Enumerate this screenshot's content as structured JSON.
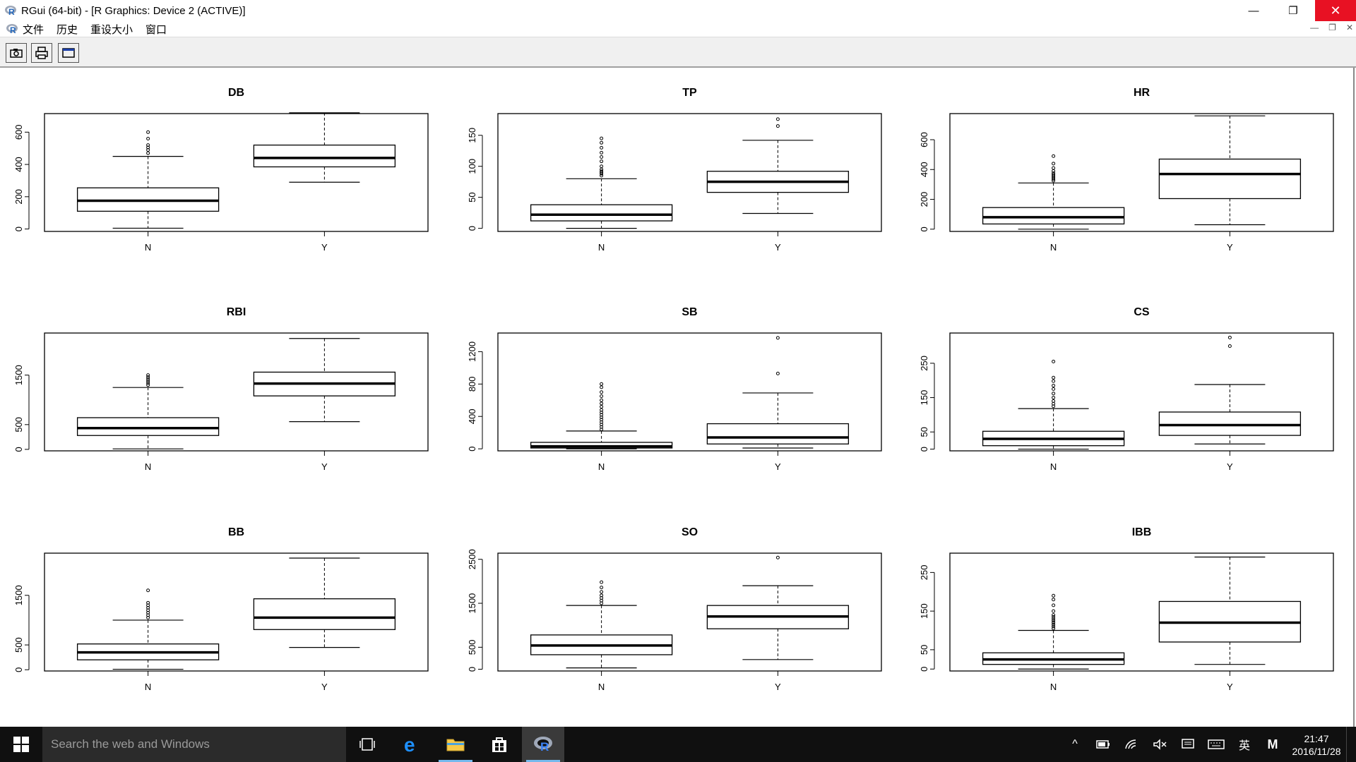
{
  "window": {
    "title": "RGui (64-bit) - [R Graphics: Device 2 (ACTIVE)]",
    "minimize_glyph": "—",
    "maximize_glyph": "❐",
    "close_glyph": "✕",
    "close_color": "#e81123"
  },
  "menubar": {
    "items": [
      "文件",
      "历史",
      "重设大小",
      "窗口"
    ],
    "mdi_close_label": "Close"
  },
  "toolbar": {
    "buttons": [
      "copy-icon",
      "print-icon",
      "window-icon"
    ]
  },
  "chart_data": [
    {
      "type": "boxplot",
      "title": "DB",
      "categories": [
        "N",
        "Y"
      ],
      "yticks": [
        0,
        200,
        400,
        600
      ],
      "ylim": [
        -15,
        715
      ],
      "boxes": [
        {
          "whisker_low": 5,
          "q1": 110,
          "median": 175,
          "q3": 255,
          "whisker_high": 450,
          "outliers": [
            470,
            490,
            505,
            520,
            560,
            600
          ]
        },
        {
          "whisker_low": 290,
          "q1": 385,
          "median": 440,
          "q3": 520,
          "whisker_high": 720,
          "outliers": []
        }
      ]
    },
    {
      "type": "boxplot",
      "title": "TP",
      "categories": [
        "N",
        "Y"
      ],
      "yticks": [
        0,
        50,
        100,
        150
      ],
      "ylim": [
        -5,
        185
      ],
      "boxes": [
        {
          "whisker_low": 0,
          "q1": 12,
          "median": 22,
          "q3": 38,
          "whisker_high": 80,
          "outliers": [
            85,
            88,
            90,
            92,
            95,
            100,
            108,
            115,
            122,
            130,
            138,
            145
          ]
        },
        {
          "whisker_low": 24,
          "q1": 58,
          "median": 75,
          "q3": 92,
          "whisker_high": 142,
          "outliers": [
            165,
            176
          ]
        }
      ]
    },
    {
      "type": "boxplot",
      "title": "HR",
      "categories": [
        "N",
        "Y"
      ],
      "yticks": [
        0,
        200,
        400,
        600
      ],
      "ylim": [
        -15,
        775
      ],
      "boxes": [
        {
          "whisker_low": 0,
          "q1": 35,
          "median": 80,
          "q3": 145,
          "whisker_high": 310,
          "outliers": [
            325,
            335,
            345,
            355,
            365,
            375,
            390,
            410,
            440,
            490
          ]
        },
        {
          "whisker_low": 30,
          "q1": 205,
          "median": 370,
          "q3": 470,
          "whisker_high": 760,
          "outliers": []
        }
      ]
    },
    {
      "type": "boxplot",
      "title": "RBI",
      "categories": [
        "N",
        "Y"
      ],
      "yticks": [
        0,
        500,
        1500
      ],
      "ylim": [
        -30,
        2350
      ],
      "boxes": [
        {
          "whisker_low": 10,
          "q1": 280,
          "median": 430,
          "q3": 640,
          "whisker_high": 1250,
          "outliers": [
            1300,
            1340,
            1380,
            1420,
            1460,
            1500
          ]
        },
        {
          "whisker_low": 560,
          "q1": 1080,
          "median": 1330,
          "q3": 1560,
          "whisker_high": 2240,
          "outliers": []
        }
      ]
    },
    {
      "type": "boxplot",
      "title": "SB",
      "categories": [
        "N",
        "Y"
      ],
      "yticks": [
        0,
        400,
        800,
        1200
      ],
      "ylim": [
        -25,
        1430
      ],
      "boxes": [
        {
          "whisker_low": 0,
          "q1": 10,
          "median": 30,
          "q3": 80,
          "whisker_high": 220,
          "outliers": [
            240,
            270,
            300,
            330,
            360,
            390,
            420,
            450,
            480,
            520,
            560,
            600,
            650,
            700,
            760,
            800
          ]
        },
        {
          "whisker_low": 10,
          "q1": 60,
          "median": 140,
          "q3": 310,
          "whisker_high": 690,
          "outliers": [
            930,
            1370
          ]
        }
      ]
    },
    {
      "type": "boxplot",
      "title": "CS",
      "categories": [
        "N",
        "Y"
      ],
      "yticks": [
        0,
        50,
        150,
        250
      ],
      "ylim": [
        -5,
        338
      ],
      "boxes": [
        {
          "whisker_low": 0,
          "q1": 10,
          "median": 30,
          "q3": 52,
          "whisker_high": 118,
          "outliers": [
            125,
            132,
            140,
            150,
            162,
            175,
            185,
            198,
            208,
            255
          ]
        },
        {
          "whisker_low": 15,
          "q1": 40,
          "median": 70,
          "q3": 108,
          "whisker_high": 188,
          "outliers": [
            300,
            325
          ]
        }
      ]
    },
    {
      "type": "boxplot",
      "title": "BB",
      "categories": [
        "N",
        "Y"
      ],
      "yticks": [
        0,
        500,
        1500
      ],
      "ylim": [
        -25,
        2350
      ],
      "boxes": [
        {
          "whisker_low": 10,
          "q1": 200,
          "median": 350,
          "q3": 520,
          "whisker_high": 1000,
          "outliers": [
            1050,
            1100,
            1150,
            1200,
            1250,
            1300,
            1350,
            1600
          ]
        },
        {
          "whisker_low": 450,
          "q1": 810,
          "median": 1050,
          "q3": 1430,
          "whisker_high": 2250,
          "outliers": []
        }
      ]
    },
    {
      "type": "boxplot",
      "title": "SO",
      "categories": [
        "N",
        "Y"
      ],
      "yticks": [
        0,
        500,
        1500,
        2500
      ],
      "ylim": [
        -40,
        2640
      ],
      "boxes": [
        {
          "whisker_low": 30,
          "q1": 330,
          "median": 540,
          "q3": 780,
          "whisker_high": 1450,
          "outliers": [
            1500,
            1560,
            1620,
            1680,
            1760,
            1860,
            1980
          ]
        },
        {
          "whisker_low": 220,
          "q1": 920,
          "median": 1200,
          "q3": 1450,
          "whisker_high": 1900,
          "outliers": [
            2540
          ]
        }
      ]
    },
    {
      "type": "boxplot",
      "title": "IBB",
      "categories": [
        "N",
        "Y"
      ],
      "yticks": [
        0,
        50,
        150,
        250
      ],
      "ylim": [
        -5,
        300
      ],
      "boxes": [
        {
          "whisker_low": 0,
          "q1": 12,
          "median": 25,
          "q3": 42,
          "whisker_high": 100,
          "outliers": [
            105,
            110,
            115,
            120,
            125,
            130,
            135,
            140,
            150,
            165,
            180,
            190
          ]
        },
        {
          "whisker_low": 12,
          "q1": 70,
          "median": 120,
          "q3": 175,
          "whisker_high": 290,
          "outliers": []
        }
      ]
    }
  ],
  "taskbar": {
    "search_placeholder": "Search the web and Windows",
    "clock_time": "21:47",
    "clock_date": "2016/11/28",
    "ime_label": "英",
    "ime_mode": "M",
    "accent": "#76b9ed"
  }
}
